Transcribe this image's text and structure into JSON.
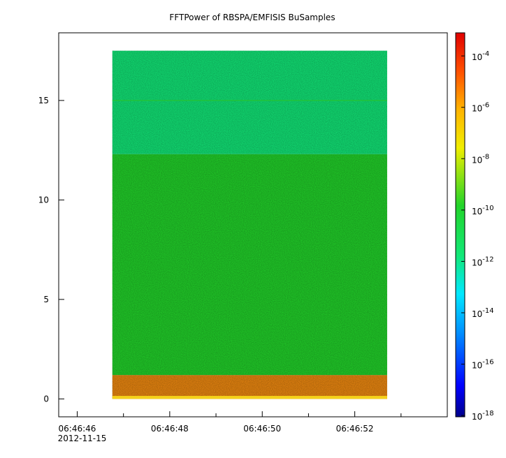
{
  "chart_data": {
    "type": "heatmap",
    "title": "FFTPower of RBSPA/EMFISIS  BuSamples",
    "x_ticks": [
      {
        "t": 46,
        "label": "06:46:46",
        "sublabel": "2012-11-15"
      },
      {
        "t": 48,
        "label": "06:46:48"
      },
      {
        "t": 50,
        "label": "06:46:50"
      },
      {
        "t": 52,
        "label": "06:46:52"
      }
    ],
    "xlim": [
      45.6,
      54.0
    ],
    "data_time_range": [
      46.76,
      52.7
    ],
    "y_ticks": [
      0,
      5,
      10,
      15
    ],
    "ylim": [
      -0.9,
      18.4
    ],
    "log_colorbar": true,
    "colorbar_ticks": [
      {
        "exp": -4,
        "label": "10",
        "sup": "-4"
      },
      {
        "exp": -6,
        "label": "10",
        "sup": "-6"
      },
      {
        "exp": -8,
        "label": "10",
        "sup": "-8"
      },
      {
        "exp": -10,
        "label": "10",
        "sup": "-10"
      },
      {
        "exp": -12,
        "label": "10",
        "sup": "-12"
      },
      {
        "exp": -14,
        "label": "10",
        "sup": "-14"
      },
      {
        "exp": -16,
        "label": "10",
        "sup": "-16"
      },
      {
        "exp": -18,
        "label": "10",
        "sup": "-18"
      }
    ],
    "colorbar_range_exp": [
      -18.05,
      -3.1
    ],
    "bands": [
      {
        "y0": 0.0,
        "y1": 1.2,
        "log_power": -7.3
      },
      {
        "y0": 1.2,
        "y1": 12.3,
        "log_power": -10.7
      },
      {
        "y0": 12.3,
        "y1": 17.5,
        "log_power": -12.2
      }
    ],
    "colors": {
      "band_low": "#f08a10",
      "band_mid": "#22d42a",
      "band_high": "#12e878",
      "line": "#22c33a"
    }
  }
}
